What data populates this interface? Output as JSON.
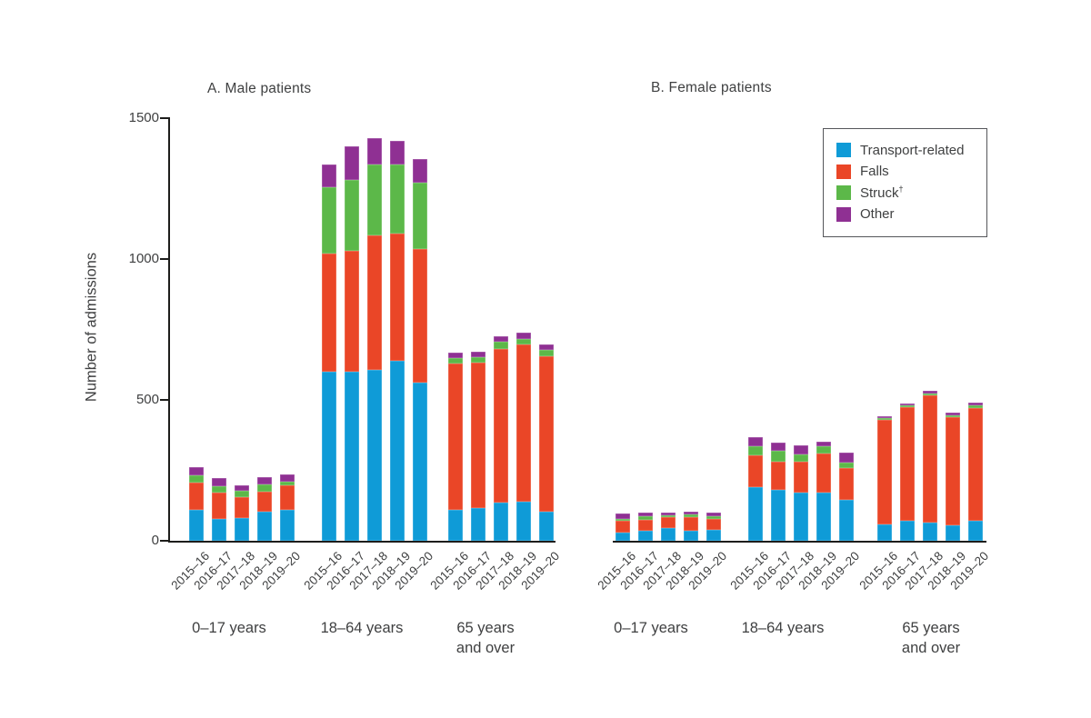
{
  "figure": {
    "ylabel": "Number of admissions",
    "background": "#ffffff",
    "axis_color": "#1d1d1b",
    "text_color": "#3f4041"
  },
  "legend": {
    "position": "top right of panel B",
    "items": [
      {
        "name": "transport-related",
        "label": "Transport-related",
        "color": "#0f9bd7"
      },
      {
        "name": "falls",
        "label": "Falls",
        "color": "#ea4627"
      },
      {
        "name": "struck",
        "label": "Struck",
        "sup": "†",
        "color": "#5cb849"
      },
      {
        "name": "other",
        "label": "Other",
        "color": "#8f3093"
      }
    ]
  },
  "chart_data": [
    {
      "type": "bar",
      "stacked": true,
      "title": "A. Male patients",
      "ylabel": "Number of admissions",
      "ylim": [
        0,
        1500
      ],
      "yticks": [
        0,
        500,
        1000,
        1500
      ],
      "grid": false,
      "categories": [
        "2015–16",
        "2016–17",
        "2017–18",
        "2018–19",
        "2019–20"
      ],
      "groups": [
        {
          "label": "0–17 years",
          "label_lines": [
            "0–17 years"
          ],
          "series": [
            {
              "name": "Transport-related",
              "values": [
                111,
                77,
                82,
                102,
                109
              ]
            },
            {
              "name": "Falls",
              "values": [
                95,
                93,
                72,
                72,
                87
              ]
            },
            {
              "name": "Struck†",
              "values": [
                27,
                25,
                22,
                25,
                14
              ]
            },
            {
              "name": "Other",
              "values": [
                27,
                27,
                21,
                27,
                27
              ]
            }
          ]
        },
        {
          "label": "18–64 years",
          "label_lines": [
            "18–64 years"
          ],
          "series": [
            {
              "name": "Transport-related",
              "values": [
                600,
                600,
                605,
                640,
                560
              ]
            },
            {
              "name": "Falls",
              "values": [
                420,
                430,
                480,
                450,
                475
              ]
            },
            {
              "name": "Struck†",
              "values": [
                235,
                250,
                250,
                245,
                235
              ]
            },
            {
              "name": "Other",
              "values": [
                80,
                120,
                95,
                85,
                85
              ]
            }
          ]
        },
        {
          "label": "65 years and over",
          "label_lines": [
            "65 years",
            "and over"
          ],
          "series": [
            {
              "name": "Transport-related",
              "values": [
                110,
                115,
                135,
                140,
                102
              ]
            },
            {
              "name": "Falls",
              "values": [
                520,
                518,
                545,
                557,
                552
              ]
            },
            {
              "name": "Struck†",
              "values": [
                18,
                19,
                25,
                20,
                25
              ]
            },
            {
              "name": "Other",
              "values": [
                20,
                18,
                20,
                21,
                18
              ]
            }
          ]
        }
      ]
    },
    {
      "type": "bar",
      "stacked": true,
      "title": "B. Female patients",
      "ylabel": "Number of admissions",
      "ylim": [
        0,
        1500
      ],
      "yticks": [
        0,
        500,
        1000,
        1500
      ],
      "grid": false,
      "categories": [
        "2015–16",
        "2016–17",
        "2017–18",
        "2018–19",
        "2019–20"
      ],
      "groups": [
        {
          "label": "0–17 years",
          "label_lines": [
            "0–17 years"
          ],
          "series": [
            {
              "name": "Transport-related",
              "values": [
                29,
                37,
                45,
                35,
                38
              ]
            },
            {
              "name": "Falls",
              "values": [
                41,
                38,
                38,
                48,
                40
              ]
            },
            {
              "name": "Struck†",
              "values": [
                8,
                11,
                7,
                11,
                10
              ]
            },
            {
              "name": "Other",
              "values": [
                18,
                13,
                9,
                10,
                11
              ]
            }
          ]
        },
        {
          "label": "18–64 years",
          "label_lines": [
            "18–64 years"
          ],
          "series": [
            {
              "name": "Transport-related",
              "values": [
                190,
                180,
                172,
                170,
                145
              ]
            },
            {
              "name": "Falls",
              "values": [
                113,
                100,
                110,
                140,
                113
              ]
            },
            {
              "name": "Struck†",
              "values": [
                34,
                38,
                25,
                27,
                19
              ]
            },
            {
              "name": "Other",
              "values": [
                31,
                32,
                33,
                14,
                37
              ]
            }
          ]
        },
        {
          "label": "65 years and over",
          "label_lines": [
            "65 years",
            "and over"
          ],
          "series": [
            {
              "name": "Transport-related",
              "values": [
                57,
                71,
                64,
                54,
                71
              ]
            },
            {
              "name": "Falls",
              "values": [
                372,
                404,
                451,
                384,
                401
              ]
            },
            {
              "name": "Struck†",
              "values": [
                7,
                6,
                9,
                8,
                9
              ]
            },
            {
              "name": "Other",
              "values": [
                7,
                5,
                8,
                8,
                8
              ]
            }
          ]
        }
      ]
    }
  ]
}
